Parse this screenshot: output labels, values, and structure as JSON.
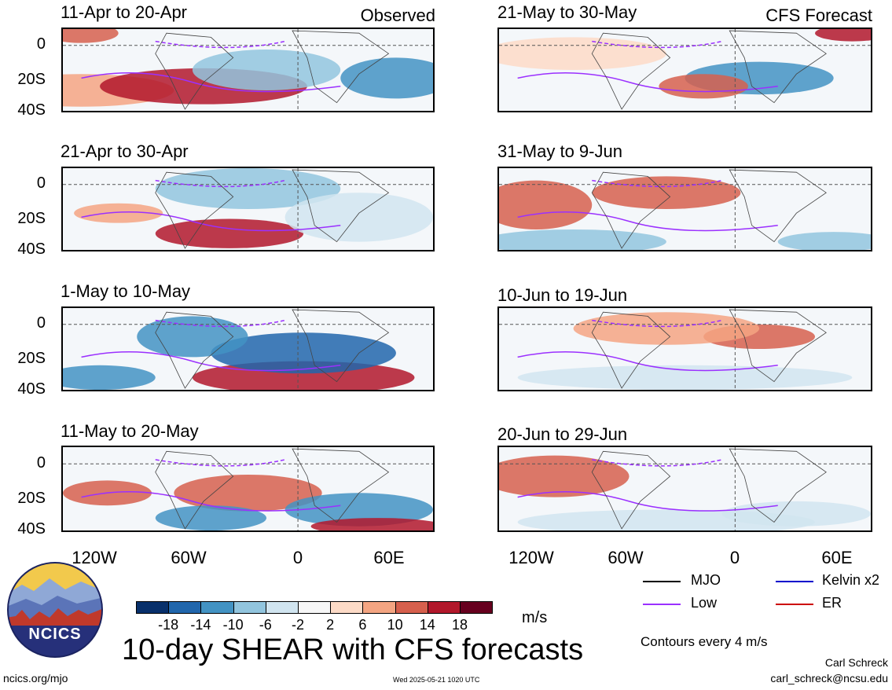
{
  "chart_data": [
    {
      "type": "heatmap",
      "title": "11-Apr to 20-Apr",
      "label": "Observed",
      "ylabels": [
        "0",
        "20S",
        "40S"
      ]
    },
    {
      "type": "heatmap",
      "title": "21-Apr to 30-Apr",
      "ylabels": [
        "0",
        "20S",
        "40S"
      ]
    },
    {
      "type": "heatmap",
      "title": "1-May to 10-May",
      "ylabels": [
        "0",
        "20S",
        "40S"
      ]
    },
    {
      "type": "heatmap",
      "title": "11-May to 20-May",
      "ylabels": [
        "0",
        "20S",
        "40S"
      ],
      "xlabels": [
        "120W",
        "60W",
        "0",
        "60E"
      ]
    },
    {
      "type": "heatmap",
      "title": "21-May to 30-May",
      "label": "CFS Forecast"
    },
    {
      "type": "heatmap",
      "title": "31-May to 9-Jun"
    },
    {
      "type": "heatmap",
      "title": "10-Jun to 19-Jun"
    },
    {
      "type": "heatmap",
      "title": "20-Jun to 29-Jun",
      "xlabels": [
        "120W",
        "60W",
        "0",
        "60E"
      ]
    }
  ],
  "colorbar": {
    "colors": [
      "#08306b",
      "#2166ac",
      "#4393c3",
      "#92c5de",
      "#d1e5f0",
      "#f7f7f7",
      "#fddbc7",
      "#f4a582",
      "#d6604d",
      "#b2182b",
      "#67001f"
    ],
    "ticks": [
      "-18",
      "-14",
      "-10",
      "-6",
      "-2",
      "2",
      "6",
      "10",
      "14",
      "18"
    ],
    "unit": "m/s"
  },
  "legend": {
    "items": [
      {
        "label": "MJO",
        "color": "#000000"
      },
      {
        "label": "Kelvin x2",
        "color": "#0000cc"
      },
      {
        "label": "Low",
        "color": "#9b30ff"
      },
      {
        "label": "ER",
        "color": "#cc0000"
      }
    ],
    "contours": "Contours every 4 m/s"
  },
  "main_title": "10-day SHEAR with CFS forecasts",
  "logo_text": "NCICS",
  "footer": {
    "left": "ncics.org/mjo",
    "center": "Wed 2025-05-21 1020 UTC",
    "author": "Carl Schreck",
    "email": "carl_schreck@ncsu.edu"
  }
}
